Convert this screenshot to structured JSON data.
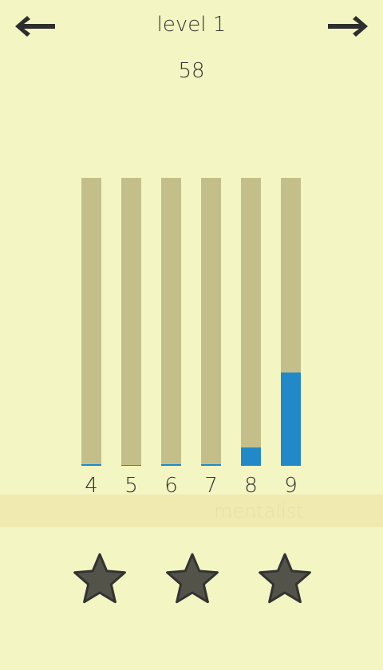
{
  "header": {
    "title": "level 1",
    "score": "58"
  },
  "icons": {
    "prev": "arrow-left-icon",
    "next": "arrow-right-icon",
    "star": "star-icon"
  },
  "colors": {
    "background": "#f3f6c2",
    "bar_track": "#c4bf8a",
    "bar_fill": "#2189c8",
    "banner": "#f1eab0",
    "star_fill": "#545349",
    "star_stroke": "#333333"
  },
  "banner": {
    "text": "mentalist"
  },
  "chart_data": {
    "type": "bar",
    "categories": [
      "4",
      "5",
      "6",
      "7",
      "8",
      "9"
    ],
    "values": [
      0.006,
      0.003,
      0.006,
      0.006,
      0.064,
      0.325
    ],
    "ylim": [
      0,
      1
    ]
  },
  "stars": {
    "count": 3
  }
}
